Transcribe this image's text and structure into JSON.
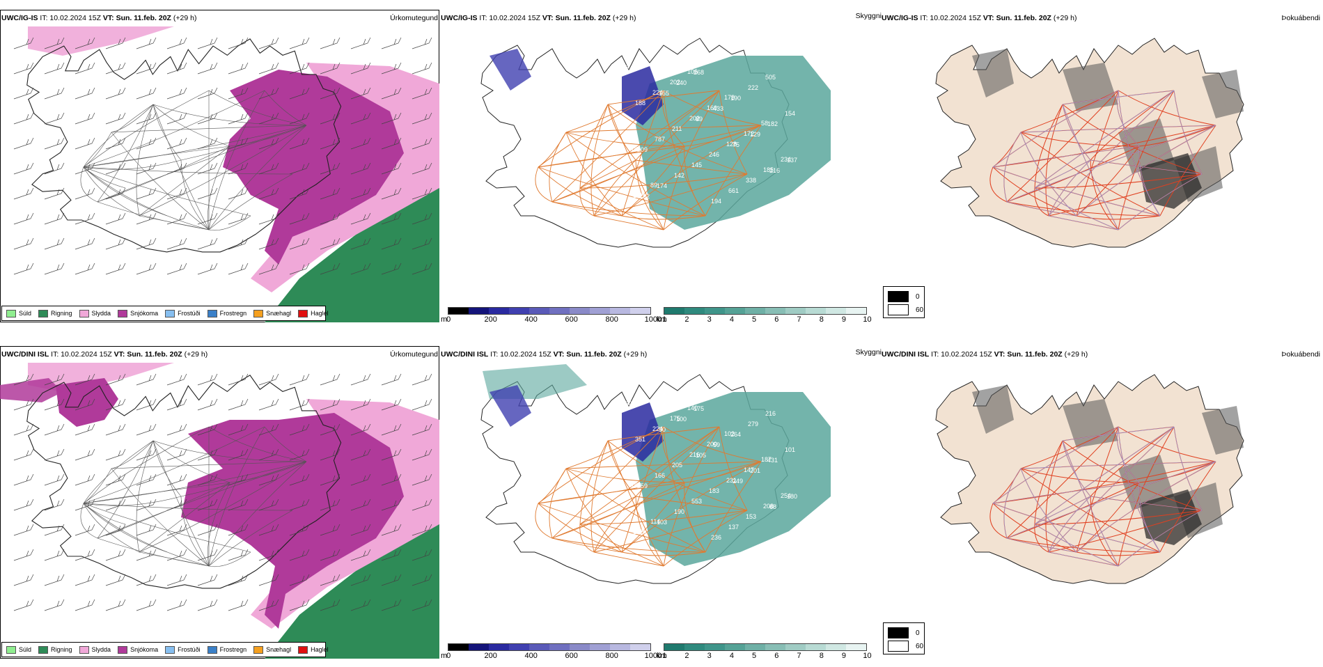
{
  "rows": [
    {
      "model": "UWC/IG-IS",
      "it_label": "IT:",
      "it_value": "10.02.2024 15Z",
      "vt_label": "VT:",
      "vt_value": "Sun. 11.feb. 20Z",
      "lead": "(+29 h)",
      "vis_labels": [
        "66",
        "155",
        "89",
        "75",
        "216",
        "232",
        "240",
        "433",
        "129",
        "137",
        "174",
        "268",
        "190",
        "182",
        "209",
        "142",
        "194",
        "222",
        "154",
        "787",
        "145",
        "661",
        "505",
        "188",
        "211",
        "246",
        "338",
        "238",
        "224",
        "202",
        "128",
        "185",
        "192",
        "202",
        "160",
        "172",
        "234",
        "89",
        "106",
        "178",
        "58",
        "76"
      ]
    },
    {
      "model": "UWC/DINI ISL",
      "it_label": "IT:",
      "it_value": "10.02.2024 15Z",
      "vt_label": "VT:",
      "vt_value": "Sun. 11.feb. 20Z",
      "lead": "(+29 h)",
      "vis_labels": [
        "130",
        "90",
        "105",
        "249",
        "68",
        "80",
        "100",
        "59",
        "201",
        "180",
        "103",
        "175",
        "264",
        "431",
        "259",
        "190",
        "236",
        "279",
        "101",
        "166",
        "553",
        "137",
        "216",
        "351",
        "205",
        "183",
        "153",
        "450",
        "224",
        "216",
        "231",
        "208",
        "162",
        "175",
        "200",
        "147",
        "254",
        "114",
        "140",
        "102",
        "187",
        "168"
      ]
    }
  ],
  "panels": {
    "type_title": "Úrkomutegund",
    "vis_title": "Skyggni",
    "fog_title": "Þokuábendi"
  },
  "precip_legend": [
    {
      "label": "Súld",
      "color": "#90ee90"
    },
    {
      "label": "Rigning",
      "color": "#2e8b57"
    },
    {
      "label": "Slydda",
      "color": "#f0a8d8"
    },
    {
      "label": "Snjókoma",
      "color": "#b03a9a"
    },
    {
      "label": "Frostúði",
      "color": "#87bff0"
    },
    {
      "label": "Frostregn",
      "color": "#3a80c8"
    },
    {
      "label": "Snæhagl",
      "color": "#f5a020"
    },
    {
      "label": "Haglél",
      "color": "#e01010"
    }
  ],
  "cbar_m": {
    "unit": "m",
    "ticks": [
      "0",
      "200",
      "400",
      "600",
      "800",
      "1000"
    ],
    "colors": [
      "#000000",
      "#14147a",
      "#2a2aa0",
      "#4040b0",
      "#5a5ab8",
      "#7070c0",
      "#8a8ac8",
      "#a0a0d4",
      "#b8b8e0",
      "#d0d0ec"
    ]
  },
  "cbar_km": {
    "unit": "km",
    "ticks": [
      "1",
      "2",
      "3",
      "4",
      "5",
      "6",
      "7",
      "8",
      "9",
      "10"
    ],
    "colors": [
      "#1f7a6e",
      "#2f8a7e",
      "#3f958a",
      "#55a296",
      "#6fb0a6",
      "#88beb5",
      "#a0ccc4",
      "#b8dbd4",
      "#d0e8e3",
      "#e8f4f2"
    ]
  },
  "fog_legend": {
    "high": "0",
    "low": "60",
    "high_color": "#000000",
    "low_color": "#ffffff"
  },
  "colors": {
    "snow": "#b03a9a",
    "sleet": "#f0a8d8",
    "rain": "#2e8b57",
    "land_fog": "#f2e2d2",
    "vis_fill": "#5aa79c",
    "roads": "#e07a30",
    "rivers": "#8aa4f0"
  }
}
